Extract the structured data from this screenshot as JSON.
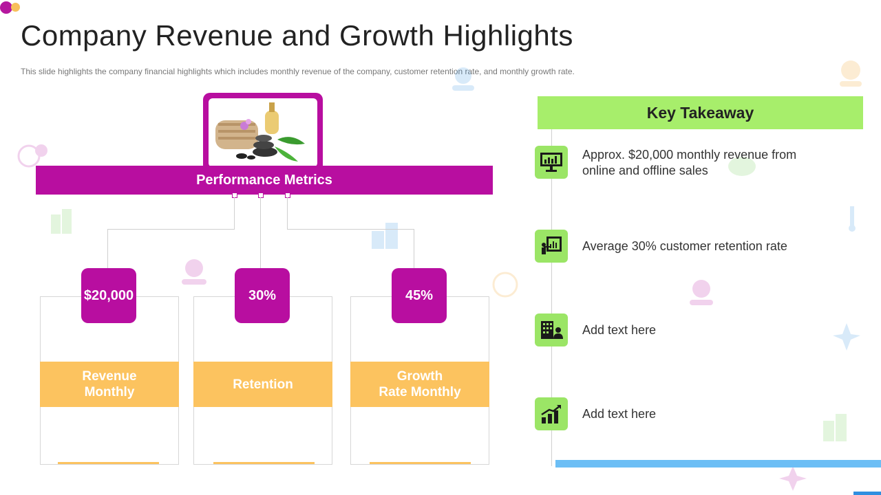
{
  "header": {
    "title": "Company Revenue and Growth Highlights",
    "subtitle": "This slide highlights the company financial highlights which includes monthly revenue  of the company, customer retention rate, and monthly growth rate."
  },
  "diagram": {
    "hub_label": "Performance Metrics",
    "metrics": [
      {
        "value": "$20,000",
        "label_line1": "Revenue",
        "label_line2": "Monthly"
      },
      {
        "value": "30%",
        "label_line1": "Retention",
        "label_line2": ""
      },
      {
        "value": "45%",
        "label_line1": "Growth",
        "label_line2": "Rate Monthly"
      }
    ]
  },
  "takeaway": {
    "heading": "Key  Takeaway",
    "items": [
      {
        "icon": "monitor-chart-icon",
        "text": "Approx. $20,000 monthly revenue from online and offline sales"
      },
      {
        "icon": "presentation-chart-icon",
        "text": "Average 30% customer retention rate"
      },
      {
        "icon": "building-person-icon",
        "text": "Add text here"
      },
      {
        "icon": "growth-bars-icon",
        "text": "Add text here"
      }
    ]
  },
  "colors": {
    "magenta": "#b80ea0",
    "orange": "#fcc35f",
    "green": "#a7ee6b",
    "blue": "#6cbef5"
  }
}
